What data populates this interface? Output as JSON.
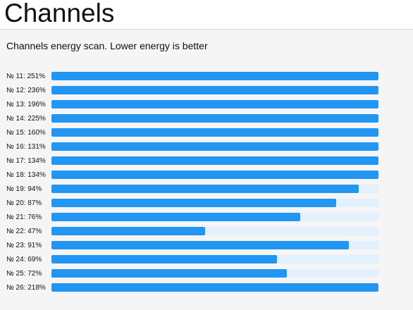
{
  "header": {
    "title": "Channels"
  },
  "subtitle": "Channels energy scan. Lower energy is better",
  "colors": {
    "bar_fill": "#2196f3",
    "bar_track": "#e3f0fd"
  },
  "channels": [
    {
      "prefix": "№",
      "number": "11",
      "energy": "251%",
      "value": 251
    },
    {
      "prefix": "№",
      "number": "12",
      "energy": "236%",
      "value": 236
    },
    {
      "prefix": "№",
      "number": "13",
      "energy": "196%",
      "value": 196
    },
    {
      "prefix": "№",
      "number": "14",
      "energy": "225%",
      "value": 225
    },
    {
      "prefix": "№",
      "number": "15",
      "energy": "160%",
      "value": 160
    },
    {
      "prefix": "№",
      "number": "16",
      "energy": "131%",
      "value": 131
    },
    {
      "prefix": "№",
      "number": "17",
      "energy": "134%",
      "value": 134
    },
    {
      "prefix": "№",
      "number": "18",
      "energy": "134%",
      "value": 134
    },
    {
      "prefix": "№",
      "number": "19",
      "energy": "94%",
      "value": 94
    },
    {
      "prefix": "№",
      "number": "20",
      "energy": "87%",
      "value": 87
    },
    {
      "prefix": "№",
      "number": "21",
      "energy": "76%",
      "value": 76
    },
    {
      "prefix": "№",
      "number": "22",
      "energy": "47%",
      "value": 47
    },
    {
      "prefix": "№",
      "number": "23",
      "energy": "91%",
      "value": 91
    },
    {
      "prefix": "№",
      "number": "24",
      "energy": "69%",
      "value": 69
    },
    {
      "prefix": "№",
      "number": "25",
      "energy": "72%",
      "value": 72
    },
    {
      "prefix": "№",
      "number": "26",
      "energy": "218%",
      "value": 218
    }
  ]
}
